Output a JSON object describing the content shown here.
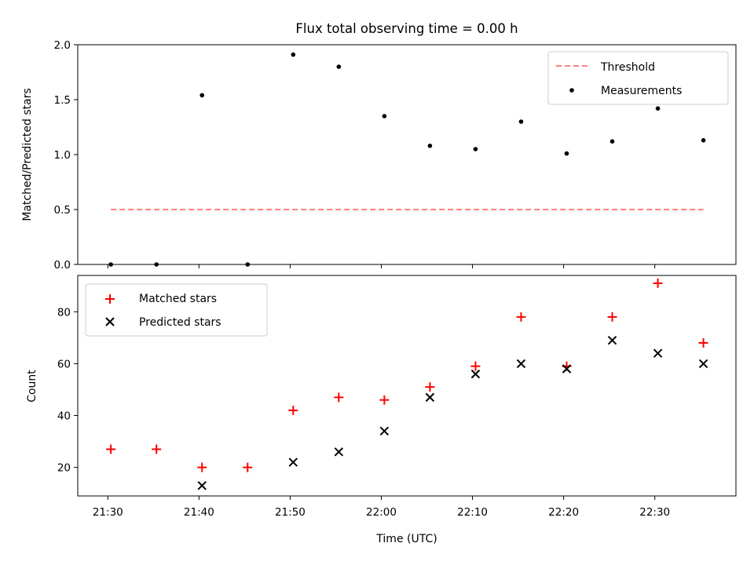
{
  "chart_data": [
    {
      "type": "scatter",
      "title": "Flux total observing time = 0.00 h",
      "xlabel": "",
      "ylabel": "Matched/Predicted stars",
      "xlim": [
        "21:26:42",
        "22:38:54"
      ],
      "ylim": [
        0,
        2.0
      ],
      "yticks": [
        "0.0",
        "0.5",
        "1.0",
        "1.5",
        "2.0"
      ],
      "legend_position": "upper right",
      "series": [
        {
          "name": "Threshold",
          "kind": "dashed-line",
          "color": "#ff7f7f",
          "points": [
            [
              "21:30:20",
              0.5
            ],
            [
              "22:35:20",
              0.5
            ]
          ]
        },
        {
          "name": "Measurements",
          "kind": "point",
          "color": "#000000",
          "points": [
            [
              "21:30:20",
              0.0
            ],
            [
              "21:35:20",
              0.0
            ],
            [
              "21:40:20",
              1.54
            ],
            [
              "21:45:20",
              0.0
            ],
            [
              "21:50:20",
              1.91
            ],
            [
              "21:55:20",
              1.8
            ],
            [
              "22:00:20",
              1.35
            ],
            [
              "22:05:20",
              1.08
            ],
            [
              "22:10:20",
              1.05
            ],
            [
              "22:15:20",
              1.3
            ],
            [
              "22:20:20",
              1.01
            ],
            [
              "22:25:20",
              1.12
            ],
            [
              "22:30:20",
              1.42
            ],
            [
              "22:35:20",
              1.13
            ]
          ]
        }
      ]
    },
    {
      "type": "scatter",
      "title": "",
      "xlabel": "Time (UTC)",
      "ylabel": "Count",
      "xlim": [
        "21:26:42",
        "22:38:54"
      ],
      "ylim": [
        9,
        94
      ],
      "yticks": [
        "20",
        "40",
        "60",
        "80"
      ],
      "xticks": [
        "21:30",
        "21:40",
        "21:50",
        "22:00",
        "22:10",
        "22:20",
        "22:30"
      ],
      "legend_position": "upper left",
      "series": [
        {
          "name": "Matched stars",
          "kind": "plus",
          "color": "#ff0000",
          "points": [
            [
              "21:30:20",
              27
            ],
            [
              "21:35:20",
              27
            ],
            [
              "21:40:20",
              20
            ],
            [
              "21:45:20",
              20
            ],
            [
              "21:50:20",
              42
            ],
            [
              "21:55:20",
              47
            ],
            [
              "22:00:20",
              46
            ],
            [
              "22:05:20",
              51
            ],
            [
              "22:10:20",
              59
            ],
            [
              "22:15:20",
              78
            ],
            [
              "22:20:20",
              59
            ],
            [
              "22:25:20",
              78
            ],
            [
              "22:30:20",
              91
            ],
            [
              "22:35:20",
              68
            ]
          ]
        },
        {
          "name": "Predicted stars",
          "kind": "cross",
          "color": "#000000",
          "points": [
            [
              "21:40:20",
              13
            ],
            [
              "21:50:20",
              22
            ],
            [
              "21:55:20",
              26
            ],
            [
              "22:00:20",
              34
            ],
            [
              "22:05:20",
              47
            ],
            [
              "22:10:20",
              56
            ],
            [
              "22:15:20",
              60
            ],
            [
              "22:20:20",
              58
            ],
            [
              "22:25:20",
              69
            ],
            [
              "22:30:20",
              64
            ],
            [
              "22:35:20",
              60
            ]
          ]
        }
      ]
    }
  ]
}
